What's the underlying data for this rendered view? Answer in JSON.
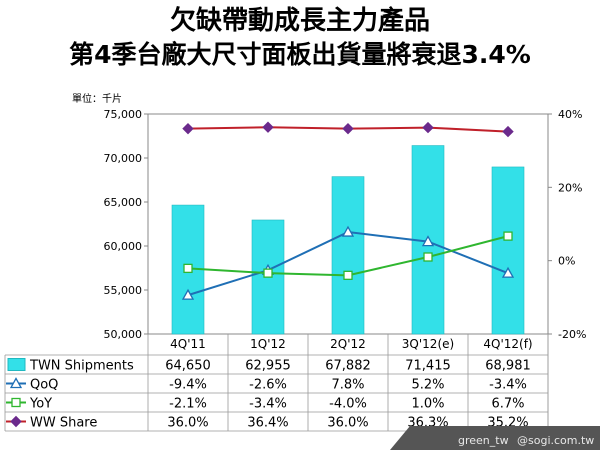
{
  "title": "欠缺帶動成長主力產品",
  "subtitle": "第4季台廠大尺寸面板出貨量將衰退3.4%",
  "unit_label": "單位：千片",
  "watermark": {
    "author": "green_tw",
    "site": "@sogi.com.tw"
  },
  "colors": {
    "bar": "#33e0e8",
    "qoq": "#1f6fb5",
    "yoy": "#2fb62f",
    "ww": "#c0202a",
    "ww_marker": "#6b2a8c"
  },
  "chart_data": {
    "type": "bar",
    "categories": [
      "4Q'11",
      "1Q'12",
      "2Q'12",
      "3Q'12(e)",
      "4Q'12(f)"
    ],
    "bar_series": {
      "name": "TWN Shipments",
      "values": [
        64650,
        62955,
        67882,
        71415,
        68981
      ],
      "labels": [
        "64,650",
        "62,955",
        "67,882",
        "71,415",
        "68,981"
      ]
    },
    "line_series": [
      {
        "name": "QoQ",
        "values": [
          -9.4,
          -2.6,
          7.8,
          5.2,
          -3.4
        ],
        "labels": [
          "-9.4%",
          "-2.6%",
          "7.8%",
          "5.2%",
          "-3.4%"
        ]
      },
      {
        "name": "YoY",
        "values": [
          -2.1,
          -3.4,
          -4.0,
          1.0,
          6.7
        ],
        "labels": [
          "-2.1%",
          "-3.4%",
          "-4.0%",
          "1.0%",
          "6.7%"
        ]
      },
      {
        "name": "WW Share",
        "values": [
          36.0,
          36.4,
          36.0,
          36.3,
          35.2
        ],
        "labels": [
          "36.0%",
          "36.4%",
          "36.0%",
          "36.3%",
          "35.2%"
        ]
      }
    ],
    "y_left": {
      "min": 50000,
      "max": 75000,
      "ticks": [
        "50,000",
        "55,000",
        "60,000",
        "65,000",
        "70,000",
        "75,000"
      ]
    },
    "y_right": {
      "min": -20,
      "max": 40,
      "ticks": [
        "-20%",
        "0%",
        "20%",
        "40%"
      ]
    },
    "grid": false,
    "legend": "data-table"
  }
}
